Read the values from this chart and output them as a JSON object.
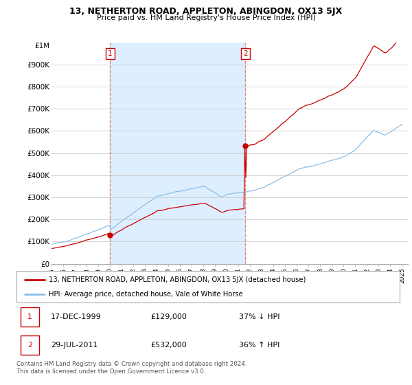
{
  "title": "13, NETHERTON ROAD, APPLETON, ABINGDON, OX13 5JX",
  "subtitle": "Price paid vs. HM Land Registry's House Price Index (HPI)",
  "legend_label_red": "13, NETHERTON ROAD, APPLETON, ABINGDON, OX13 5JX (detached house)",
  "legend_label_blue": "HPI: Average price, detached house, Vale of White Horse",
  "table_rows": [
    {
      "num": "1",
      "date": "17-DEC-1999",
      "price": "£129,000",
      "hpi": "37% ↓ HPI"
    },
    {
      "num": "2",
      "date": "29-JUL-2011",
      "price": "£532,000",
      "hpi": "36% ↑ HPI"
    }
  ],
  "footnote": "Contains HM Land Registry data © Crown copyright and database right 2024.\nThis data is licensed under the Open Government Licence v3.0.",
  "marker1_year": 2000.0,
  "marker1_value": 129000,
  "marker2_year": 2011.58,
  "marker2_value": 532000,
  "hpi_color": "#8bbfe8",
  "price_color": "#cc0000",
  "shade_color": "#ddeeff",
  "background_color": "#ffffff",
  "ylim_max": 1000000,
  "xlim_start": 1995.0,
  "xlim_end": 2025.5
}
